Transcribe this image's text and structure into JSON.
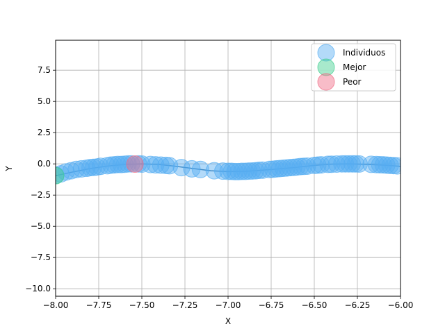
{
  "chart_data": {
    "type": "scatter",
    "title": "",
    "xlabel": "X",
    "ylabel": "Y",
    "xlim": [
      -8.0,
      -6.0
    ],
    "ylim": [
      -10.6,
      9.9
    ],
    "xticks": [
      -8.0,
      -7.75,
      -7.5,
      -7.25,
      -7.0,
      -6.75,
      -6.5,
      -6.25,
      -6.0
    ],
    "xtick_labels": [
      "−8.00",
      "−7.75",
      "−7.50",
      "−7.25",
      "−7.00",
      "−6.75",
      "−6.50",
      "−6.25",
      "−6.00"
    ],
    "yticks": [
      -10.0,
      -7.5,
      -5.0,
      -2.5,
      0.0,
      2.5,
      5.0,
      7.5
    ],
    "ytick_labels": [
      "−10.0",
      "−7.5",
      "−5.0",
      "−2.5",
      "0.0",
      "2.5",
      "5.0",
      "7.5"
    ],
    "grid": true,
    "legend_position": "top-right",
    "curve": {
      "color": "#2a6fa8",
      "x": [
        -8.0,
        -7.9,
        -7.8,
        -7.7,
        -7.6,
        -7.5,
        -7.4,
        -7.3,
        -7.2,
        -7.1,
        -7.0,
        -6.9,
        -6.8,
        -6.7,
        -6.6,
        -6.5,
        -6.4,
        -6.3,
        -6.2,
        -6.1,
        -6.0
      ],
      "y": [
        -0.95,
        -0.65,
        -0.38,
        -0.18,
        -0.05,
        0.0,
        -0.05,
        -0.2,
        -0.38,
        -0.55,
        -0.62,
        -0.6,
        -0.5,
        -0.4,
        -0.27,
        -0.12,
        -0.02,
        0.0,
        -0.04,
        -0.1,
        -0.2
      ]
    },
    "series": [
      {
        "name": "Individuos",
        "color": "#56aef2",
        "x": [
          -8.0,
          -7.97,
          -7.94,
          -7.91,
          -7.88,
          -7.85,
          -7.82,
          -7.8,
          -7.78,
          -7.76,
          -7.74,
          -7.7,
          -7.68,
          -7.66,
          -7.64,
          -7.62,
          -7.6,
          -7.58,
          -7.56,
          -7.52,
          -7.5,
          -7.45,
          -7.42,
          -7.39,
          -7.36,
          -7.34,
          -7.27,
          -7.21,
          -7.16,
          -7.08,
          -7.03,
          -7.0,
          -6.98,
          -6.96,
          -6.94,
          -6.92,
          -6.9,
          -6.88,
          -6.86,
          -6.84,
          -6.82,
          -6.8,
          -6.76,
          -6.74,
          -6.72,
          -6.7,
          -6.68,
          -6.66,
          -6.64,
          -6.62,
          -6.6,
          -6.58,
          -6.56,
          -6.54,
          -6.5,
          -6.48,
          -6.46,
          -6.42,
          -6.4,
          -6.37,
          -6.34,
          -6.32,
          -6.3,
          -6.28,
          -6.26,
          -6.24,
          -6.17,
          -6.14,
          -6.12,
          -6.1,
          -6.08,
          -6.06,
          -6.04,
          -6.02
        ],
        "y": [
          -0.9,
          -0.8,
          -0.65,
          -0.55,
          -0.45,
          -0.4,
          -0.35,
          -0.3,
          -0.28,
          -0.25,
          -0.2,
          -0.15,
          -0.1,
          -0.08,
          -0.05,
          -0.05,
          -0.03,
          0.0,
          0.0,
          0.0,
          -0.02,
          -0.05,
          -0.08,
          -0.1,
          -0.12,
          -0.15,
          -0.3,
          -0.4,
          -0.45,
          -0.55,
          -0.58,
          -0.6,
          -0.6,
          -0.62,
          -0.62,
          -0.6,
          -0.6,
          -0.58,
          -0.57,
          -0.55,
          -0.52,
          -0.5,
          -0.45,
          -0.43,
          -0.4,
          -0.38,
          -0.35,
          -0.33,
          -0.3,
          -0.28,
          -0.25,
          -0.22,
          -0.2,
          -0.18,
          -0.12,
          -0.1,
          -0.08,
          -0.04,
          -0.03,
          -0.02,
          0.0,
          0.0,
          0.0,
          0.0,
          0.0,
          -0.01,
          -0.04,
          -0.06,
          -0.07,
          -0.08,
          -0.1,
          -0.12,
          -0.14,
          -0.16
        ]
      },
      {
        "name": "Mejor",
        "color": "#3ecf8e",
        "x": [
          -8.0
        ],
        "y": [
          -0.95
        ]
      },
      {
        "name": "Peor",
        "color": "#f06b85",
        "x": [
          -7.54
        ],
        "y": [
          -0.02
        ]
      }
    ]
  }
}
